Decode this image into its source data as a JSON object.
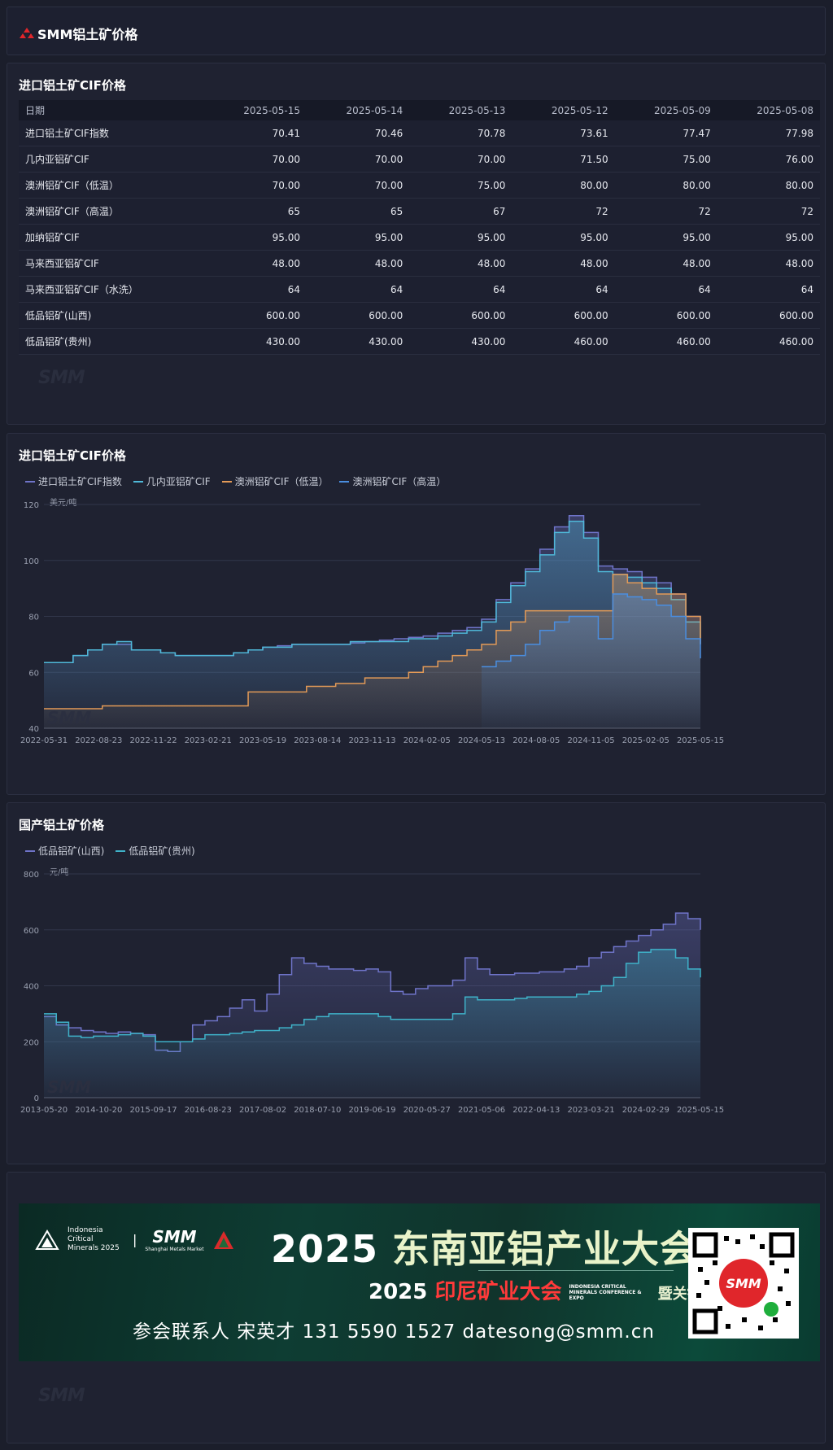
{
  "header": {
    "title": "SMM铝土矿价格"
  },
  "table": {
    "title": "进口铝土矿CIF价格",
    "columns": [
      "日期",
      "2025-05-15",
      "2025-05-14",
      "2025-05-13",
      "2025-05-12",
      "2025-05-09",
      "2025-05-08"
    ],
    "rows": [
      [
        "进口铝土矿CIF指数",
        "70.41",
        "70.46",
        "70.78",
        "73.61",
        "77.47",
        "77.98"
      ],
      [
        "几内亚铝矿CIF",
        "70.00",
        "70.00",
        "70.00",
        "71.50",
        "75.00",
        "76.00"
      ],
      [
        "澳洲铝矿CIF（低温）",
        "70.00",
        "70.00",
        "75.00",
        "80.00",
        "80.00",
        "80.00"
      ],
      [
        "澳洲铝矿CIF（高温）",
        "65",
        "65",
        "67",
        "72",
        "72",
        "72"
      ],
      [
        "加纳铝矿CIF",
        "95.00",
        "95.00",
        "95.00",
        "95.00",
        "95.00",
        "95.00"
      ],
      [
        "马来西亚铝矿CIF",
        "48.00",
        "48.00",
        "48.00",
        "48.00",
        "48.00",
        "48.00"
      ],
      [
        "马来西亚铝矿CIF（水洗）",
        "64",
        "64",
        "64",
        "64",
        "64",
        "64"
      ],
      [
        "低品铝矿(山西)",
        "600.00",
        "600.00",
        "600.00",
        "600.00",
        "600.00",
        "600.00"
      ],
      [
        "低品铝矿(贵州)",
        "430.00",
        "430.00",
        "430.00",
        "460.00",
        "460.00",
        "460.00"
      ]
    ]
  },
  "watermark": "SMM",
  "chart1": {
    "title": "进口铝土矿CIF价格",
    "unit": "美元/吨",
    "chart_data": {
      "type": "area",
      "x_ticks": [
        "2022-05-31",
        "2022-08-23",
        "2022-11-22",
        "2023-02-21",
        "2023-05-19",
        "2023-08-14",
        "2023-11-13",
        "2024-02-05",
        "2024-05-13",
        "2024-08-05",
        "2024-11-05",
        "2025-02-05",
        "2025-05-15"
      ],
      "ylim": [
        40,
        120
      ],
      "y_ticks": [
        40,
        60,
        80,
        100,
        120
      ],
      "grid": true,
      "legend": "top-left",
      "series": [
        {
          "name": "进口铝土矿CIF指数",
          "color": "#6f74c9",
          "values": [
            63.5,
            63.5,
            66,
            68,
            70,
            70,
            68,
            68,
            67,
            66,
            66,
            66,
            66,
            67,
            68,
            69,
            69.5,
            70,
            70,
            70,
            70,
            70.5,
            71,
            71.5,
            72,
            72.5,
            73,
            74,
            75,
            76,
            79,
            86,
            92,
            97,
            104,
            112,
            116,
            110,
            98,
            97,
            96,
            94,
            92,
            88,
            80,
            70.4
          ]
        },
        {
          "name": "几内亚铝矿CIF",
          "color": "#4fb8d8",
          "values": [
            63.5,
            63.5,
            66,
            68,
            70,
            71,
            68,
            68,
            67,
            66,
            66,
            66,
            66,
            67,
            68,
            69,
            69,
            70,
            70,
            70,
            70,
            71,
            71,
            71,
            71,
            72,
            72,
            73,
            74,
            75,
            78,
            85,
            91,
            96,
            102,
            110,
            114,
            108,
            96,
            95,
            94,
            92,
            90,
            86,
            78,
            70
          ]
        },
        {
          "name": "澳洲铝矿CIF（低温）",
          "color": "#e39a57",
          "values": [
            47,
            47,
            47,
            47,
            48,
            48,
            48,
            48,
            48,
            48,
            48,
            48,
            48,
            48,
            53,
            53,
            53,
            53,
            55,
            55,
            56,
            56,
            58,
            58,
            58,
            60,
            62,
            64,
            66,
            68,
            70,
            75,
            78,
            82,
            82,
            82,
            82,
            82,
            82,
            95,
            92,
            90,
            88,
            88,
            80,
            70
          ]
        },
        {
          "name": "澳洲铝矿CIF（高温）",
          "color": "#4a8ee0",
          "values": [
            null,
            null,
            null,
            null,
            null,
            null,
            null,
            null,
            null,
            null,
            null,
            null,
            null,
            null,
            null,
            null,
            null,
            null,
            null,
            null,
            null,
            null,
            null,
            null,
            null,
            null,
            null,
            null,
            null,
            null,
            62,
            64,
            66,
            70,
            75,
            78,
            80,
            80,
            72,
            88,
            87,
            86,
            84,
            80,
            72,
            65
          ]
        }
      ]
    }
  },
  "chart2": {
    "title": "国产铝土矿价格",
    "unit": "元/吨",
    "chart_data": {
      "type": "area",
      "x_ticks": [
        "2013-05-20",
        "2014-10-20",
        "2015-09-17",
        "2016-08-23",
        "2017-08-02",
        "2018-07-10",
        "2019-06-19",
        "2020-05-27",
        "2021-05-06",
        "2022-04-13",
        "2023-03-21",
        "2024-02-29",
        "2025-05-15"
      ],
      "ylim": [
        0,
        800
      ],
      "y_ticks": [
        0,
        200,
        400,
        600,
        800
      ],
      "grid": true,
      "legend": "top-left",
      "series": [
        {
          "name": "低品铝矿(山西)",
          "color": "#6f74c9",
          "values": [
            290,
            260,
            250,
            240,
            235,
            230,
            235,
            230,
            225,
            170,
            165,
            200,
            260,
            275,
            290,
            320,
            350,
            310,
            370,
            440,
            500,
            480,
            470,
            460,
            460,
            455,
            460,
            450,
            380,
            370,
            390,
            400,
            400,
            420,
            500,
            460,
            440,
            440,
            445,
            445,
            450,
            450,
            460,
            470,
            500,
            520,
            540,
            560,
            580,
            600,
            620,
            660,
            640,
            600
          ]
        },
        {
          "name": "低品铝矿(贵州)",
          "color": "#3fb2c9",
          "values": [
            300,
            270,
            220,
            215,
            220,
            220,
            225,
            230,
            220,
            200,
            200,
            200,
            210,
            225,
            225,
            230,
            235,
            240,
            240,
            250,
            260,
            280,
            290,
            300,
            300,
            300,
            300,
            290,
            280,
            280,
            280,
            280,
            280,
            300,
            360,
            350,
            350,
            350,
            355,
            360,
            360,
            360,
            360,
            370,
            380,
            400,
            430,
            480,
            520,
            530,
            530,
            500,
            460,
            430
          ]
        }
      ]
    }
  },
  "banner": {
    "logo1": "Indonesia Critical Minerals 2025",
    "logo2": "SMM",
    "logo2_sub": "Shanghai Metals Market",
    "headline_year": "2025",
    "headline_cn": "东南亚铝产业大会",
    "sub_year": "2025",
    "sub_red": "印尼矿业大会",
    "sub_en": "INDONESIA CRITICAL MINERALS CONFERENCE & EXPO",
    "sub_cn": "暨关键金属会议",
    "contact": "参会联系人  宋英才  131 5590 1527  datesong@smm.cn",
    "qr_label": "SMM"
  }
}
